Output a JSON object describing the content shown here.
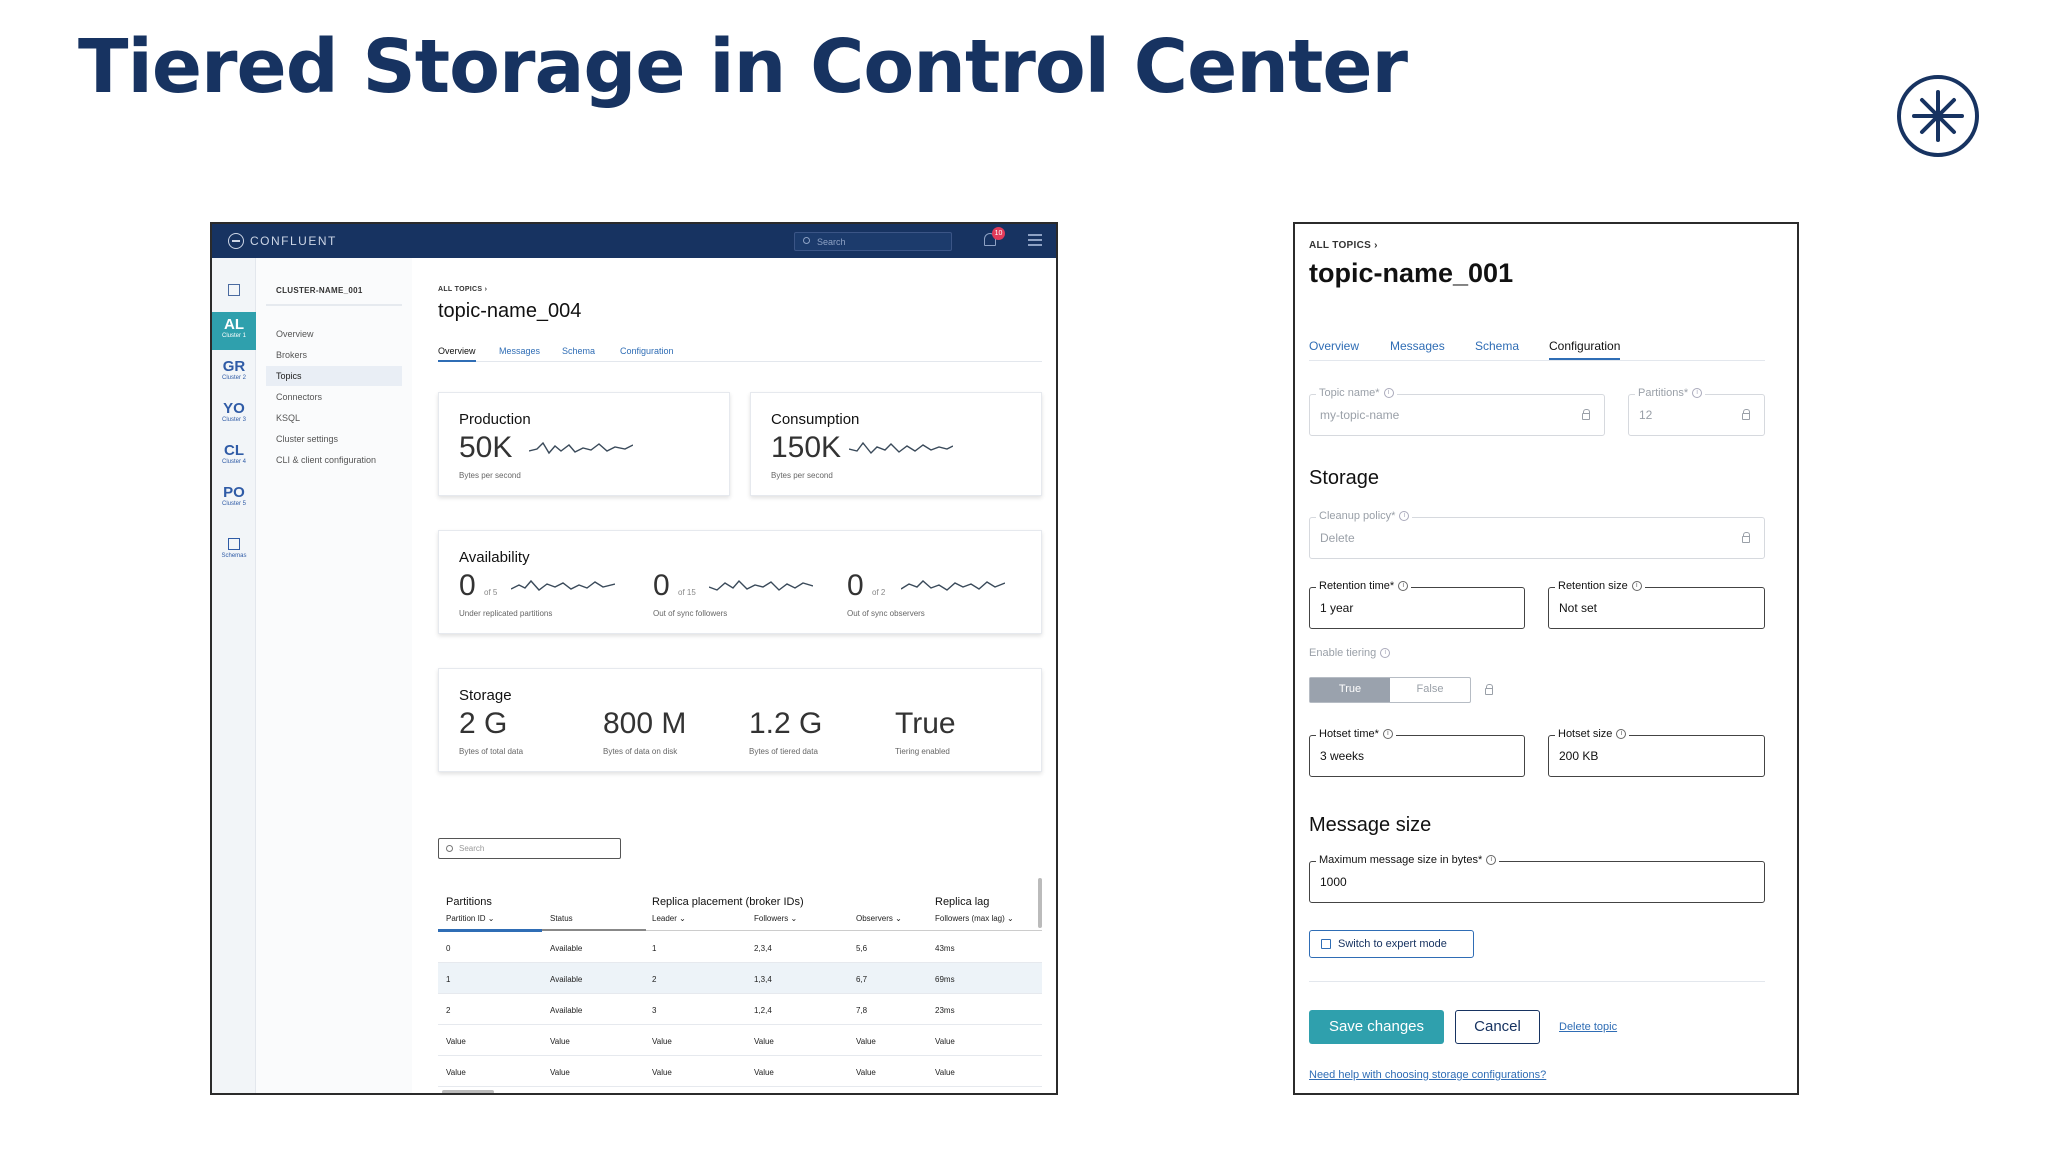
{
  "slide": {
    "title": "Tiered Storage in Control Center"
  },
  "left": {
    "topbar": {
      "brand": "CONFLUENT",
      "search_placeholder": "Search",
      "notification_count": "10"
    },
    "rail": [
      {
        "abbr": "AL",
        "sub": "Cluster 1",
        "active": true
      },
      {
        "abbr": "GR",
        "sub": "Cluster 2"
      },
      {
        "abbr": "YO",
        "sub": "Cluster 3"
      },
      {
        "abbr": "CL",
        "sub": "Cluster 4"
      },
      {
        "abbr": "PO",
        "sub": "Cluster 5"
      }
    ],
    "rail_schemas": "Schemas",
    "subnav": {
      "cluster_name": "CLUSTER-NAME_001",
      "items": [
        "Overview",
        "Brokers",
        "Topics",
        "Connectors",
        "KSQL",
        "Cluster settings",
        "CLI & client configuration"
      ],
      "active_index": 2
    },
    "breadcrumb": "ALL TOPICS ›",
    "title": "topic-name_004",
    "tabs": [
      "Overview",
      "Messages",
      "Schema",
      "Configuration"
    ],
    "production": {
      "title": "Production",
      "value": "50K",
      "caption": "Bytes per second"
    },
    "consumption": {
      "title": "Consumption",
      "value": "150K",
      "caption": "Bytes per second"
    },
    "availability": {
      "title": "Availability",
      "items": [
        {
          "value": "0",
          "of": "of 5",
          "caption": "Under replicated partitions"
        },
        {
          "value": "0",
          "of": "of 15",
          "caption": "Out of sync followers"
        },
        {
          "value": "0",
          "of": "of 2",
          "caption": "Out of sync observers"
        }
      ]
    },
    "storage": {
      "title": "Storage",
      "items": [
        {
          "value": "2 G",
          "caption": "Bytes of total data"
        },
        {
          "value": "800 M",
          "caption": "Bytes of data on disk"
        },
        {
          "value": "1.2 G",
          "caption": "Bytes of tiered data"
        },
        {
          "value": "True",
          "caption": "Tiering enabled"
        }
      ]
    },
    "table_search_placeholder": "Search",
    "table": {
      "groups": [
        "Partitions",
        "Replica placement (broker IDs)",
        "Replica lag"
      ],
      "columns": [
        "Partition ID",
        "Status",
        "Leader",
        "Followers",
        "Observers",
        "Followers (max lag)"
      ],
      "rows": [
        [
          "0",
          "Available",
          "1",
          "2,3,4",
          "5,6",
          "43ms"
        ],
        [
          "1",
          "Available",
          "2",
          "1,3,4",
          "6,7",
          "69ms"
        ],
        [
          "2",
          "Available",
          "3",
          "1,2,4",
          "7,8",
          "23ms"
        ],
        [
          "Value",
          "Value",
          "Value",
          "Value",
          "Value",
          "Value"
        ],
        [
          "Value",
          "Value",
          "Value",
          "Value",
          "Value",
          "Value"
        ]
      ]
    }
  },
  "right": {
    "breadcrumb": "ALL TOPICS ›",
    "title": "topic-name_001",
    "tabs": [
      "Overview",
      "Messages",
      "Schema",
      "Configuration"
    ],
    "topic_name": {
      "label": "Topic name*",
      "value": "my-topic-name"
    },
    "partitions": {
      "label": "Partitions*",
      "value": "12"
    },
    "storage_heading": "Storage",
    "cleanup_policy": {
      "label": "Cleanup policy*",
      "value": "Delete"
    },
    "retention_time": {
      "label": "Retention time*",
      "value": "1 year"
    },
    "retention_size": {
      "label": "Retention size",
      "value": "Not set"
    },
    "enable_tiering": {
      "label": "Enable tiering",
      "options": [
        "True",
        "False"
      ],
      "selected": "True"
    },
    "hotset_time": {
      "label": "Hotset time*",
      "value": "3 weeks"
    },
    "hotset_size": {
      "label": "Hotset size",
      "value": "200 KB"
    },
    "message_size_heading": "Message size",
    "max_message_size": {
      "label": "Maximum message size in bytes*",
      "value": "1000"
    },
    "expert_mode": "Switch to expert mode",
    "save": "Save changes",
    "cancel": "Cancel",
    "delete": "Delete topic",
    "help": "Need help with choosing storage configurations?"
  }
}
